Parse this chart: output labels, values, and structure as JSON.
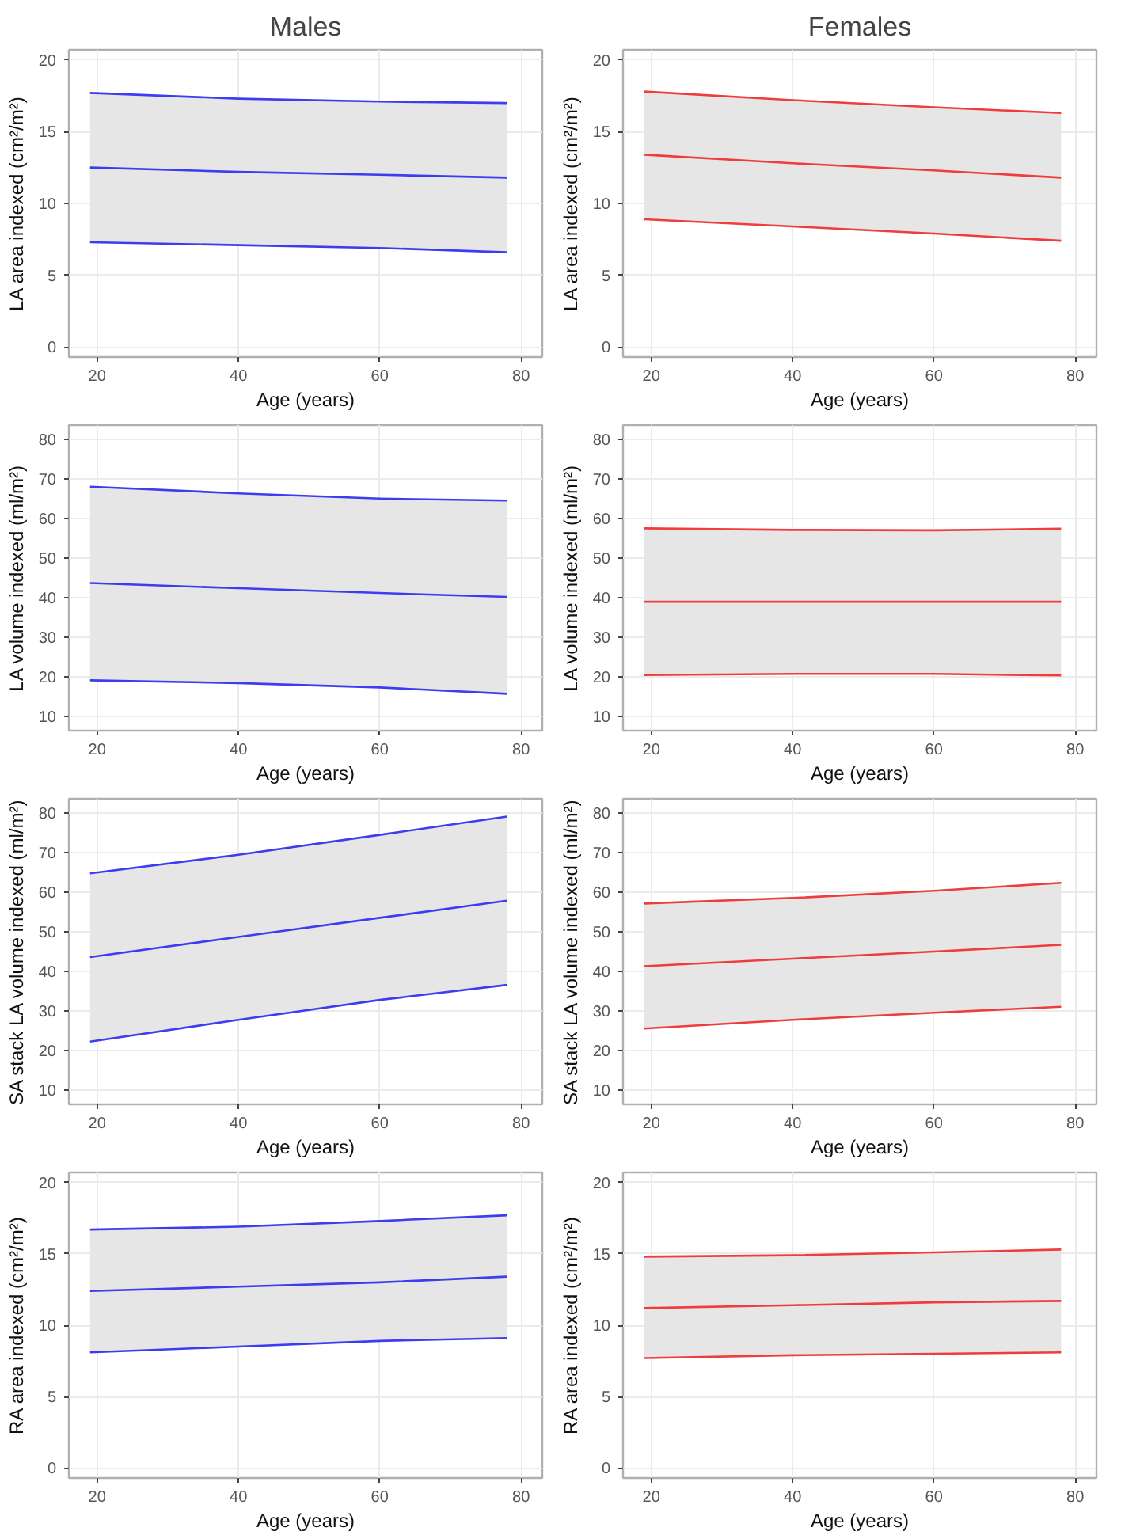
{
  "chart_data": [
    {
      "type": "line",
      "title": "Males",
      "xlabel": "Age (years)",
      "ylabel": "LA area indexed (cm²/m²)",
      "x": [
        19,
        40,
        60,
        78
      ],
      "xlim": [
        16,
        83
      ],
      "xticks": [
        20,
        40,
        60,
        80
      ],
      "ylim": [
        -0.7,
        20.7
      ],
      "yticks": [
        0,
        5,
        10,
        15,
        20
      ],
      "grid": true,
      "series": [
        {
          "color": "#3c3cf0",
          "values": [
            17.7,
            17.3,
            17.1,
            17.0
          ]
        },
        {
          "color": "#3c3cf0",
          "values": [
            12.5,
            12.2,
            12.0,
            11.8
          ],
          "lower": [
            7.3,
            7.1,
            6.9,
            6.6
          ],
          "upper": [
            17.7,
            17.3,
            17.1,
            17.0
          ]
        },
        {
          "color": "#3c3cf0",
          "values": [
            7.3,
            7.1,
            6.9,
            6.6
          ]
        }
      ]
    },
    {
      "type": "line",
      "title": "Females",
      "xlabel": "Age (years)",
      "ylabel": "LA area indexed (cm²/m²)",
      "x": [
        19,
        40,
        60,
        78
      ],
      "xlim": [
        16,
        83
      ],
      "xticks": [
        20,
        40,
        60,
        80
      ],
      "ylim": [
        -0.7,
        20.7
      ],
      "yticks": [
        0,
        5,
        10,
        15,
        20
      ],
      "grid": true,
      "series": [
        {
          "color": "#f03c3c",
          "values": [
            17.8,
            17.2,
            16.7,
            16.3
          ]
        },
        {
          "color": "#f03c3c",
          "values": [
            13.4,
            12.8,
            12.3,
            11.8
          ],
          "lower": [
            8.9,
            8.4,
            7.9,
            7.4
          ],
          "upper": [
            17.8,
            17.2,
            16.7,
            16.3
          ]
        },
        {
          "color": "#f03c3c",
          "values": [
            8.9,
            8.4,
            7.9,
            7.4
          ]
        }
      ]
    },
    {
      "type": "line",
      "xlabel": "Age (years)",
      "ylabel": "LA volume indexed (ml/m²)",
      "x": [
        19,
        40,
        60,
        78
      ],
      "xlim": [
        16,
        83
      ],
      "xticks": [
        20,
        40,
        60,
        80
      ],
      "ylim": [
        6.5,
        83.5
      ],
      "yticks": [
        10,
        20,
        30,
        40,
        50,
        60,
        70,
        80
      ],
      "grid": true,
      "series": [
        {
          "color": "#3c3cf0",
          "values": [
            68.0,
            66.3,
            65.0,
            64.5
          ]
        },
        {
          "color": "#3c3cf0",
          "values": [
            43.7,
            42.4,
            41.2,
            40.2
          ],
          "lower": [
            19.2,
            18.5,
            17.4,
            15.8
          ],
          "upper": [
            68.0,
            66.3,
            65.0,
            64.5
          ]
        },
        {
          "color": "#3c3cf0",
          "values": [
            19.2,
            18.5,
            17.4,
            15.8
          ]
        }
      ]
    },
    {
      "type": "line",
      "xlabel": "Age (years)",
      "ylabel": "LA volume indexed (ml/m²)",
      "x": [
        19,
        40,
        60,
        78
      ],
      "xlim": [
        16,
        83
      ],
      "xticks": [
        20,
        40,
        60,
        80
      ],
      "ylim": [
        6.5,
        83.5
      ],
      "yticks": [
        10,
        20,
        30,
        40,
        50,
        60,
        70,
        80
      ],
      "grid": true,
      "series": [
        {
          "color": "#f03c3c",
          "values": [
            57.5,
            57.1,
            57.0,
            57.4
          ]
        },
        {
          "color": "#f03c3c",
          "values": [
            39.0,
            39.0,
            39.0,
            39.0
          ],
          "lower": [
            20.5,
            20.8,
            20.8,
            20.4
          ],
          "upper": [
            57.5,
            57.1,
            57.0,
            57.4
          ]
        },
        {
          "color": "#f03c3c",
          "values": [
            20.5,
            20.8,
            20.8,
            20.4
          ]
        }
      ]
    },
    {
      "type": "line",
      "xlabel": "Age (years)",
      "ylabel": "SA stack LA volume indexed (ml/m²)",
      "x": [
        19,
        40,
        60,
        78
      ],
      "xlim": [
        16,
        83
      ],
      "xticks": [
        20,
        40,
        60,
        80
      ],
      "ylim": [
        6.5,
        83.5
      ],
      "yticks": [
        10,
        20,
        30,
        40,
        50,
        60,
        70,
        80
      ],
      "grid": true,
      "series": [
        {
          "color": "#3c3cf0",
          "values": [
            64.7,
            69.4,
            74.4,
            79.0
          ]
        },
        {
          "color": "#3c3cf0",
          "values": [
            43.6,
            48.7,
            53.5,
            57.8
          ],
          "lower": [
            22.3,
            27.8,
            32.8,
            36.6
          ],
          "upper": [
            64.7,
            69.4,
            74.4,
            79.0
          ]
        },
        {
          "color": "#3c3cf0",
          "values": [
            22.3,
            27.8,
            32.8,
            36.6
          ]
        }
      ]
    },
    {
      "type": "line",
      "xlabel": "Age (years)",
      "ylabel": "SA stack LA volume indexed (ml/m²)",
      "x": [
        19,
        40,
        60,
        78
      ],
      "xlim": [
        16,
        83
      ],
      "xticks": [
        20,
        40,
        60,
        80
      ],
      "ylim": [
        6.5,
        83.5
      ],
      "yticks": [
        10,
        20,
        30,
        40,
        50,
        60,
        70,
        80
      ],
      "grid": true,
      "series": [
        {
          "color": "#f03c3c",
          "values": [
            57.1,
            58.5,
            60.3,
            62.3
          ]
        },
        {
          "color": "#f03c3c",
          "values": [
            41.3,
            43.2,
            45.0,
            46.7
          ],
          "lower": [
            25.6,
            27.8,
            29.6,
            31.1
          ],
          "upper": [
            57.1,
            58.5,
            60.3,
            62.3
          ]
        },
        {
          "color": "#f03c3c",
          "values": [
            25.6,
            27.8,
            29.6,
            31.1
          ]
        }
      ]
    },
    {
      "type": "line",
      "xlabel": "Age (years)",
      "ylabel": "RA area indexed (cm²/m²)",
      "x": [
        19,
        40,
        60,
        78
      ],
      "xlim": [
        16,
        83
      ],
      "xticks": [
        20,
        40,
        60,
        80
      ],
      "ylim": [
        -0.7,
        20.7
      ],
      "yticks": [
        0,
        5,
        10,
        15,
        20
      ],
      "grid": true,
      "series": [
        {
          "color": "#3c3cf0",
          "values": [
            16.7,
            16.9,
            17.3,
            17.7
          ]
        },
        {
          "color": "#3c3cf0",
          "values": [
            12.4,
            12.7,
            13.0,
            13.4
          ],
          "lower": [
            8.1,
            8.5,
            8.9,
            9.1
          ],
          "upper": [
            16.7,
            16.9,
            17.3,
            17.7
          ]
        },
        {
          "color": "#3c3cf0",
          "values": [
            8.1,
            8.5,
            8.9,
            9.1
          ]
        }
      ]
    },
    {
      "type": "line",
      "xlabel": "Age (years)",
      "ylabel": "RA area indexed (cm²/m²)",
      "x": [
        19,
        40,
        60,
        78
      ],
      "xlim": [
        16,
        83
      ],
      "xticks": [
        20,
        40,
        60,
        80
      ],
      "ylim": [
        -0.7,
        20.7
      ],
      "yticks": [
        0,
        5,
        10,
        15,
        20
      ],
      "grid": true,
      "series": [
        {
          "color": "#f03c3c",
          "values": [
            14.8,
            14.9,
            15.1,
            15.3
          ]
        },
        {
          "color": "#f03c3c",
          "values": [
            11.2,
            11.4,
            11.6,
            11.7
          ],
          "lower": [
            7.7,
            7.9,
            8.0,
            8.1
          ],
          "upper": [
            14.8,
            14.9,
            15.1,
            15.3
          ]
        },
        {
          "color": "#f03c3c",
          "values": [
            7.7,
            7.9,
            8.0,
            8.1
          ]
        }
      ]
    }
  ]
}
